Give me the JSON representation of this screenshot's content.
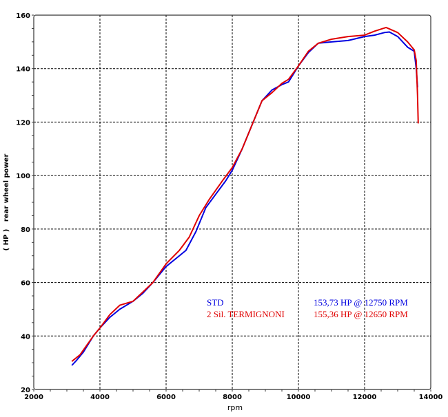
{
  "chart_data": {
    "type": "line",
    "title": "",
    "xlabel": "rpm",
    "ylabel": "( HP )   rear wheel power",
    "xlim": [
      2000,
      14000
    ],
    "ylim": [
      20,
      160
    ],
    "xticks": [
      2000,
      4000,
      6000,
      8000,
      10000,
      12000,
      14000
    ],
    "yticks": [
      20,
      40,
      60,
      80,
      100,
      120,
      140,
      160
    ],
    "grid": true,
    "legend_placement": "bottom-right",
    "series": [
      {
        "name": "STD",
        "color": "#0000e0",
        "summary": "153,73 HP @ 12750 RPM",
        "points": [
          [
            3150,
            29
          ],
          [
            3300,
            31
          ],
          [
            3500,
            34
          ],
          [
            3800,
            40
          ],
          [
            4000,
            43
          ],
          [
            4300,
            47
          ],
          [
            4600,
            50
          ],
          [
            5000,
            53
          ],
          [
            5300,
            56
          ],
          [
            5600,
            60
          ],
          [
            6000,
            66
          ],
          [
            6300,
            69
          ],
          [
            6600,
            72
          ],
          [
            6900,
            79
          ],
          [
            7200,
            88
          ],
          [
            7500,
            93
          ],
          [
            7800,
            98
          ],
          [
            8000,
            102
          ],
          [
            8300,
            110
          ],
          [
            8600,
            119
          ],
          [
            8900,
            128
          ],
          [
            9200,
            132
          ],
          [
            9500,
            134
          ],
          [
            9700,
            135
          ],
          [
            10000,
            141
          ],
          [
            10300,
            146
          ],
          [
            10600,
            149.5
          ],
          [
            11000,
            150
          ],
          [
            11500,
            150.5
          ],
          [
            12000,
            152
          ],
          [
            12300,
            152.5
          ],
          [
            12600,
            153.5
          ],
          [
            12750,
            153.7
          ],
          [
            13000,
            152
          ],
          [
            13300,
            148
          ],
          [
            13500,
            146.5
          ],
          [
            13560,
            140
          ],
          [
            13600,
            133
          ]
        ]
      },
      {
        "name": "2 Sil. TERMIGNONI",
        "color": "#e00000",
        "summary": "155,36 HP @ 12650 RPM",
        "points": [
          [
            3150,
            30.5
          ],
          [
            3400,
            33
          ],
          [
            3800,
            40
          ],
          [
            4000,
            43
          ],
          [
            4300,
            48
          ],
          [
            4600,
            51.5
          ],
          [
            5000,
            53
          ],
          [
            5600,
            60
          ],
          [
            6000,
            67
          ],
          [
            6400,
            72
          ],
          [
            6700,
            77
          ],
          [
            7000,
            85
          ],
          [
            7300,
            91
          ],
          [
            7700,
            98
          ],
          [
            8000,
            103
          ],
          [
            8300,
            110
          ],
          [
            8600,
            119
          ],
          [
            8900,
            128
          ],
          [
            9200,
            131
          ],
          [
            9500,
            134.5
          ],
          [
            9700,
            136
          ],
          [
            10000,
            141
          ],
          [
            10300,
            146.5
          ],
          [
            10600,
            149.5
          ],
          [
            11000,
            151
          ],
          [
            11500,
            152
          ],
          [
            12000,
            152.5
          ],
          [
            12300,
            154
          ],
          [
            12650,
            155.4
          ],
          [
            13000,
            153.5
          ],
          [
            13300,
            150
          ],
          [
            13500,
            147
          ],
          [
            13560,
            143
          ],
          [
            13600,
            130
          ],
          [
            13620,
            119.5
          ]
        ]
      }
    ]
  }
}
